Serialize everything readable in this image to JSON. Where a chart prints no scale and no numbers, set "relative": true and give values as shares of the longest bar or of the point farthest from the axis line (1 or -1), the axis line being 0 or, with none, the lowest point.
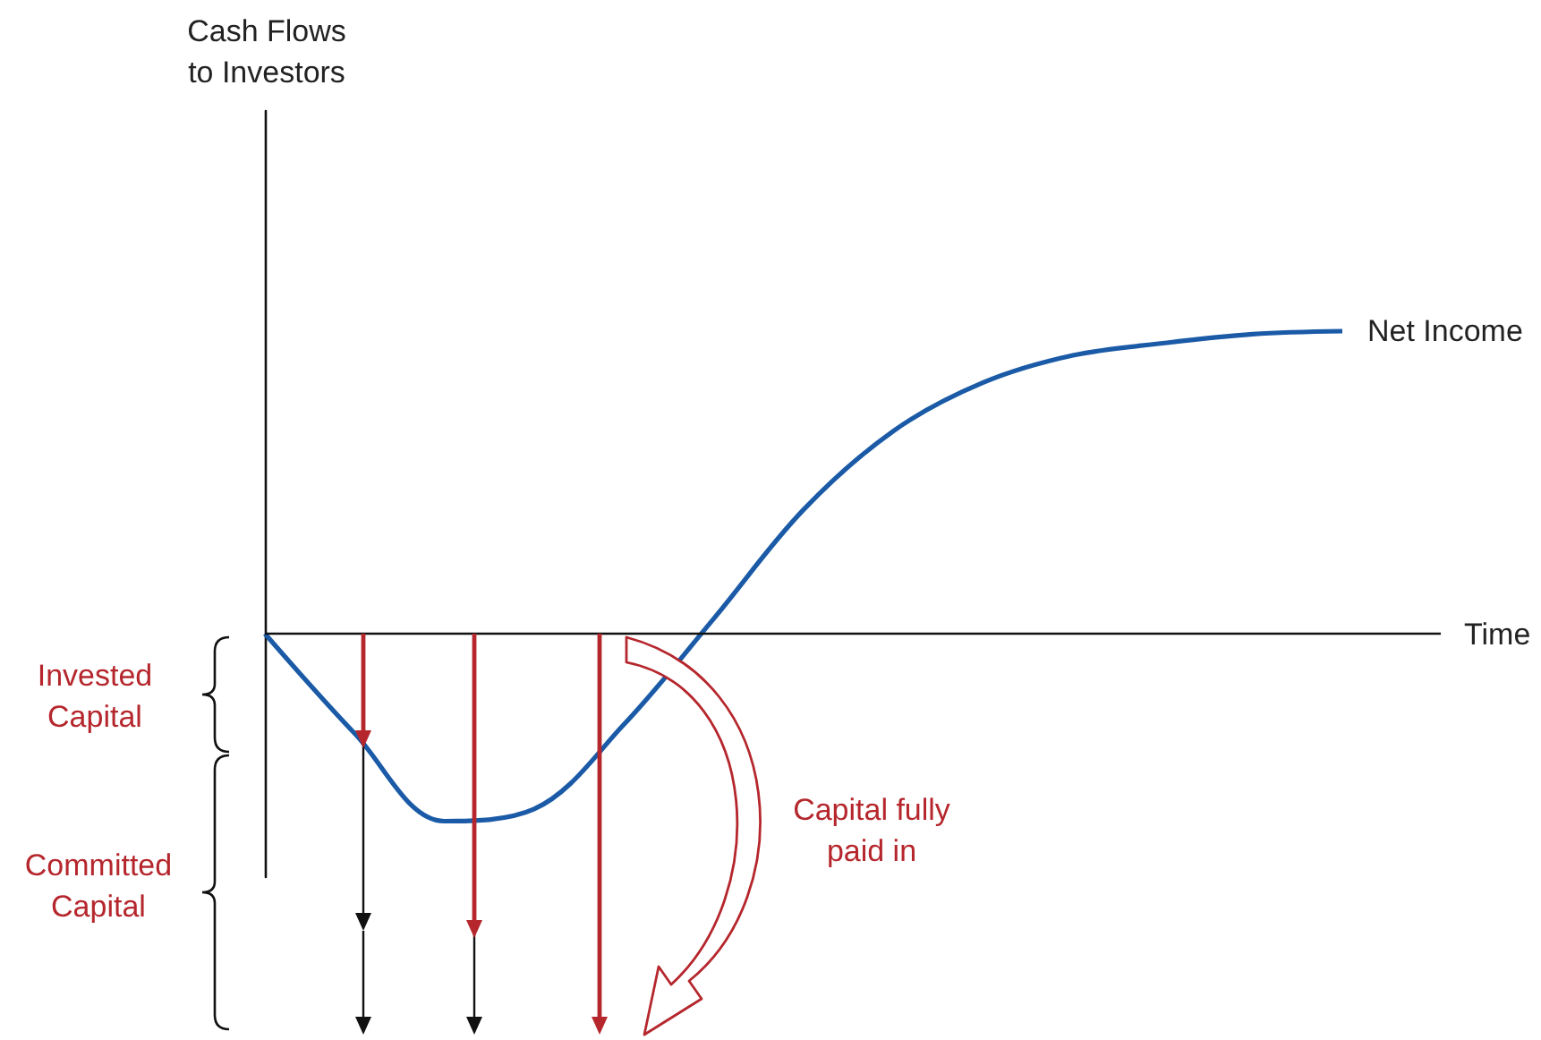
{
  "chart_data": {
    "type": "line",
    "xlabel": "Time",
    "relative": true,
    "categories": [
      null,
      null,
      null,
      null,
      null,
      null,
      null,
      null,
      null,
      null,
      null,
      null,
      null
    ],
    "series": [
      {
        "name": "Net Income",
        "color": "#1a5aa6",
        "values": [
          0,
          -0.33,
          -0.62,
          -0.58,
          -0.3,
          0.05,
          0.41,
          0.67,
          0.83,
          0.92,
          0.96,
          0.99,
          1
        ]
      }
    ],
    "annotations": [
      "Cash Flows\nto Investors",
      "Invested\nCapital",
      "Committed\nCapital",
      "Capital fully\npaid in"
    ]
  }
}
